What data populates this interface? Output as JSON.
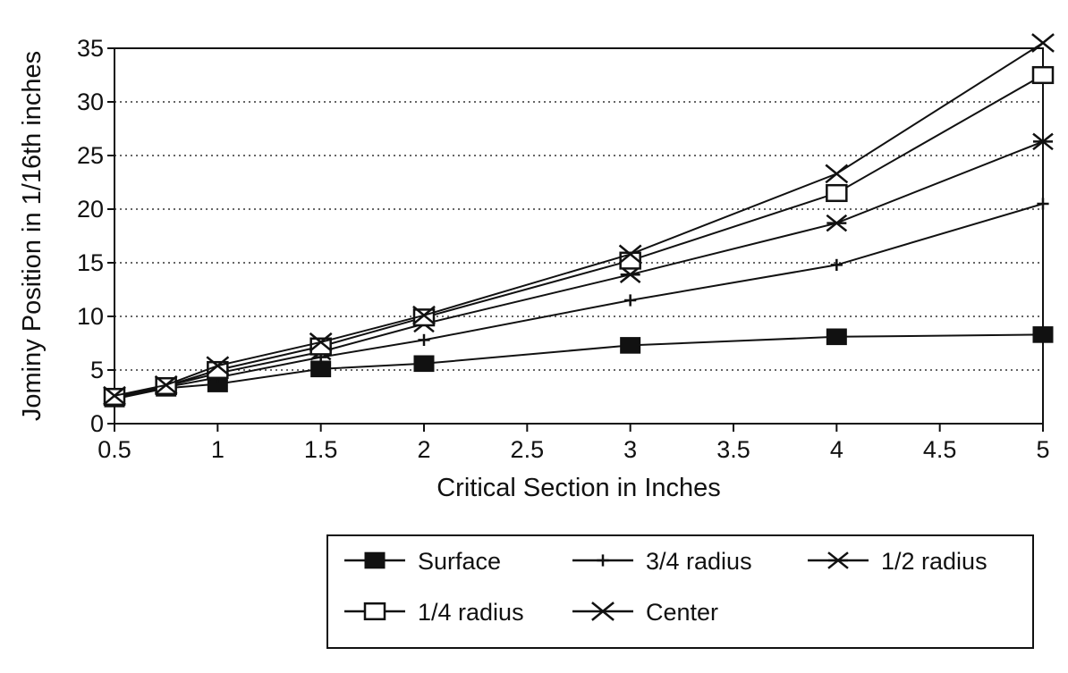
{
  "chart_data": {
    "type": "line",
    "title": "",
    "xlabel": "Critical Section in Inches",
    "ylabel": "Jominy Position in 1/16th inches",
    "xlim": [
      0.5,
      5
    ],
    "ylim": [
      0,
      35
    ],
    "xticks": [
      "0.5",
      "1",
      "1.5",
      "2",
      "2.5",
      "3",
      "3.5",
      "4",
      "4.5",
      "5"
    ],
    "yticks": [
      "0",
      "5",
      "10",
      "15",
      "20",
      "25",
      "30",
      "35"
    ],
    "grid": "horizontal dotted",
    "legend_position": "bottom-right",
    "x": [
      0.5,
      0.75,
      1,
      1.5,
      2,
      3,
      4,
      5
    ],
    "series": [
      {
        "name": "Surface",
        "marker": "filled-square",
        "values": [
          2.3,
          3.3,
          3.7,
          5.1,
          5.6,
          7.3,
          8.1,
          8.3
        ]
      },
      {
        "name": "3/4 radius",
        "marker": "plus",
        "values": [
          2.4,
          3.4,
          4.3,
          6.2,
          7.8,
          11.5,
          14.8,
          20.5
        ]
      },
      {
        "name": "1/2 radius",
        "marker": "asterisk",
        "values": [
          2.5,
          3.5,
          4.7,
          6.7,
          9.3,
          13.9,
          18.7,
          26.3
        ]
      },
      {
        "name": "1/4 radius",
        "marker": "open-square",
        "values": [
          2.5,
          3.5,
          5.0,
          7.2,
          9.9,
          15.2,
          21.5,
          32.5
        ]
      },
      {
        "name": "Center",
        "marker": "x",
        "values": [
          2.6,
          3.6,
          5.4,
          7.6,
          10.1,
          15.8,
          23.3,
          35.5
        ]
      }
    ]
  }
}
